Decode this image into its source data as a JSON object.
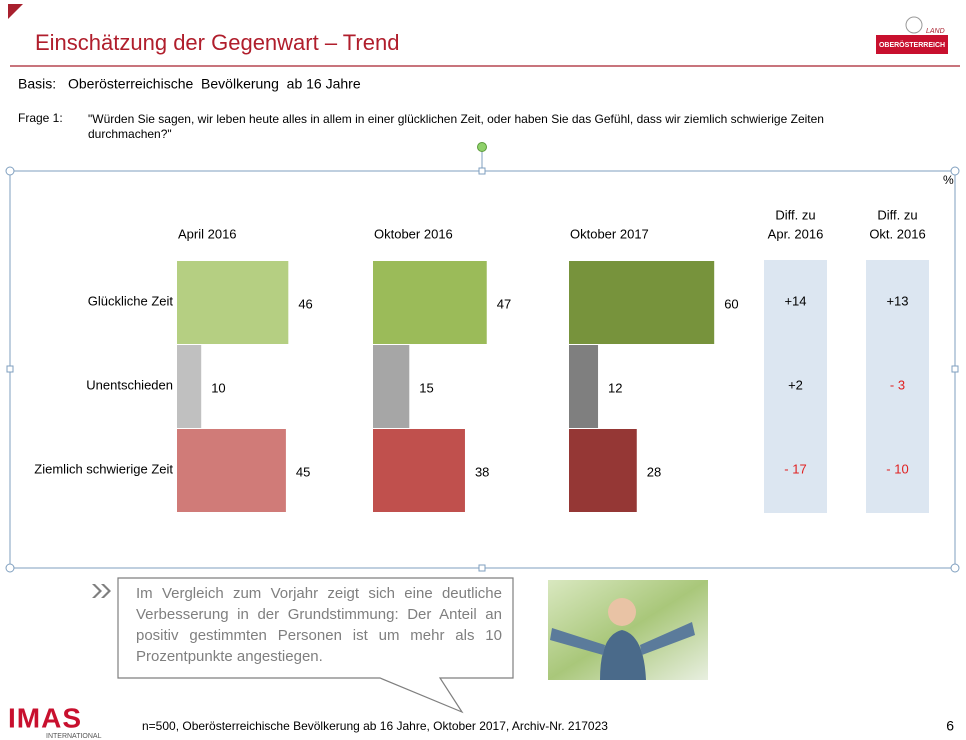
{
  "header": {
    "title": "Einschätzung der Gegenwart – Trend",
    "logo_top": "LAND",
    "logo_bottom": "OBERÖSTERREICH"
  },
  "basis": {
    "label": "Basis:",
    "text": "Oberösterreichische  Bevölkerung  ab 16 Jahre"
  },
  "question": {
    "label": "Frage 1:",
    "text": "\"Würden Sie sagen, wir leben heute alles in allem in einer glücklichen Zeit, oder haben Sie das Gefühl, dass wir ziemlich schwierige Zeiten durchmachen?\""
  },
  "chart_data": {
    "type": "bar",
    "orientation": "horizontal",
    "unit_label": "%",
    "categories": [
      "Glückliche Zeit",
      "Unentschieden",
      "Ziemlich schwierige Zeit"
    ],
    "series": [
      {
        "name": "April 2016",
        "colors": [
          "#b5cf82",
          "#c0c0c0",
          "#d07b78"
        ],
        "values": [
          46,
          10,
          45
        ]
      },
      {
        "name": "Oktober 2016",
        "colors": [
          "#9bbb59",
          "#a6a6a6",
          "#c0504d"
        ],
        "values": [
          47,
          15,
          38
        ]
      },
      {
        "name": "Oktober 2017",
        "colors": [
          "#77933c",
          "#7f7f7f",
          "#953735"
        ],
        "values": [
          60,
          12,
          28
        ]
      }
    ],
    "diff_columns": [
      {
        "title_lines": [
          "Diff. zu",
          "Apr. 2016"
        ],
        "values": [
          14,
          2,
          -17
        ],
        "value_labels": [
          "+14",
          "+2",
          "- 17"
        ]
      },
      {
        "title_lines": [
          "Diff. zu",
          "Okt. 2016"
        ],
        "values": [
          13,
          -3,
          -10
        ],
        "value_labels": [
          "+13",
          "- 3",
          "- 10"
        ]
      }
    ],
    "diff_background": "#dce6f1",
    "positive_color": "#000000",
    "negative_color": "#e02020"
  },
  "callout": {
    "text": "Im Vergleich zum Vorjahr zeigt sich eine deutliche Verbesserung in der Grundstimmung: Der Anteil an positiv gestimmten Personen ist um mehr als 10 Prozentpunkte  angestiegen."
  },
  "footer": {
    "brand": "IMAS",
    "brand_sub": "INTERNATIONAL",
    "note": "n=500, Oberösterreichische Bevölkerung ab 16 Jahre, Oktober 2017, Archiv-Nr. 217023",
    "page": "6"
  }
}
